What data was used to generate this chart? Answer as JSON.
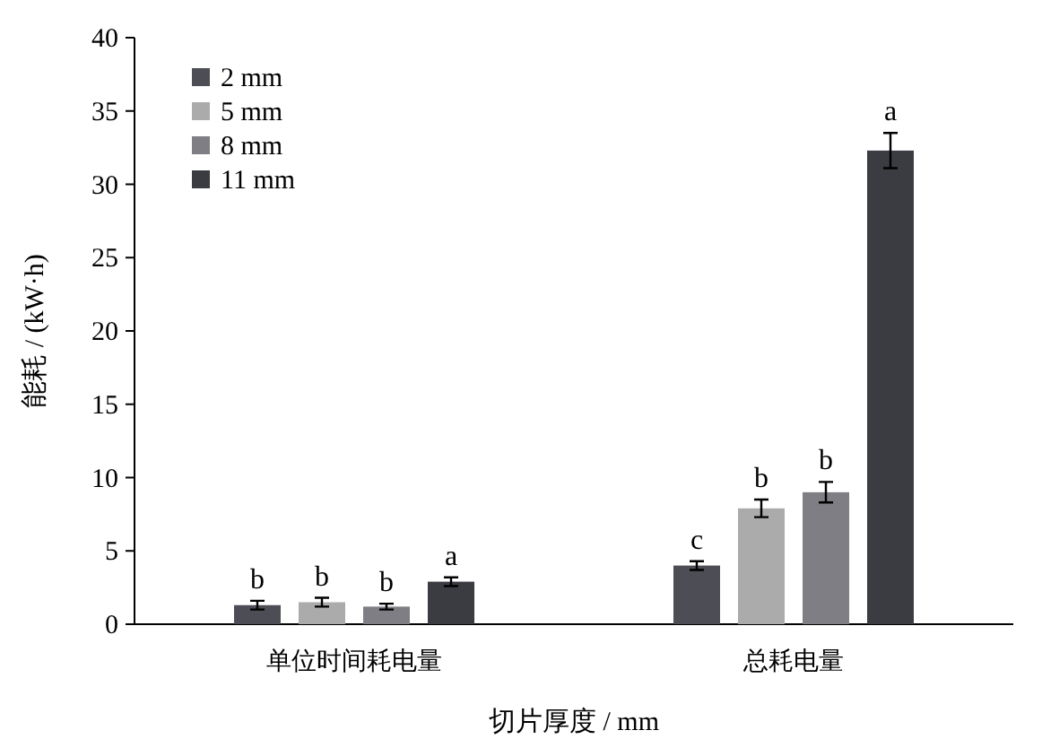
{
  "chart_data": {
    "type": "bar",
    "xlabel": "切片厚度 / mm",
    "ylabel": "能耗 / (kW·h)",
    "categories": [
      "单位时间耗电量",
      "总耗电量"
    ],
    "series": [
      {
        "name": "2 mm",
        "color": "#4d4d55",
        "values": [
          1.3,
          4.0
        ],
        "errors": [
          0.3,
          0.3
        ]
      },
      {
        "name": "5 mm",
        "color": "#ababab",
        "values": [
          1.5,
          7.9
        ],
        "errors": [
          0.3,
          0.6
        ]
      },
      {
        "name": "8 mm",
        "color": "#7e7e84",
        "values": [
          1.2,
          9.0
        ],
        "errors": [
          0.2,
          0.7
        ]
      },
      {
        "name": "11 mm",
        "color": "#3b3b42",
        "values": [
          2.9,
          32.3
        ],
        "errors": [
          0.3,
          1.2
        ]
      }
    ],
    "ylim": [
      0,
      40
    ],
    "yticks": [
      0,
      5,
      10,
      15,
      20,
      25,
      30,
      35,
      40
    ],
    "legend": "top left",
    "annotations": [
      "b",
      "b",
      "b",
      "a",
      "c",
      "b",
      "b",
      "a"
    ]
  }
}
